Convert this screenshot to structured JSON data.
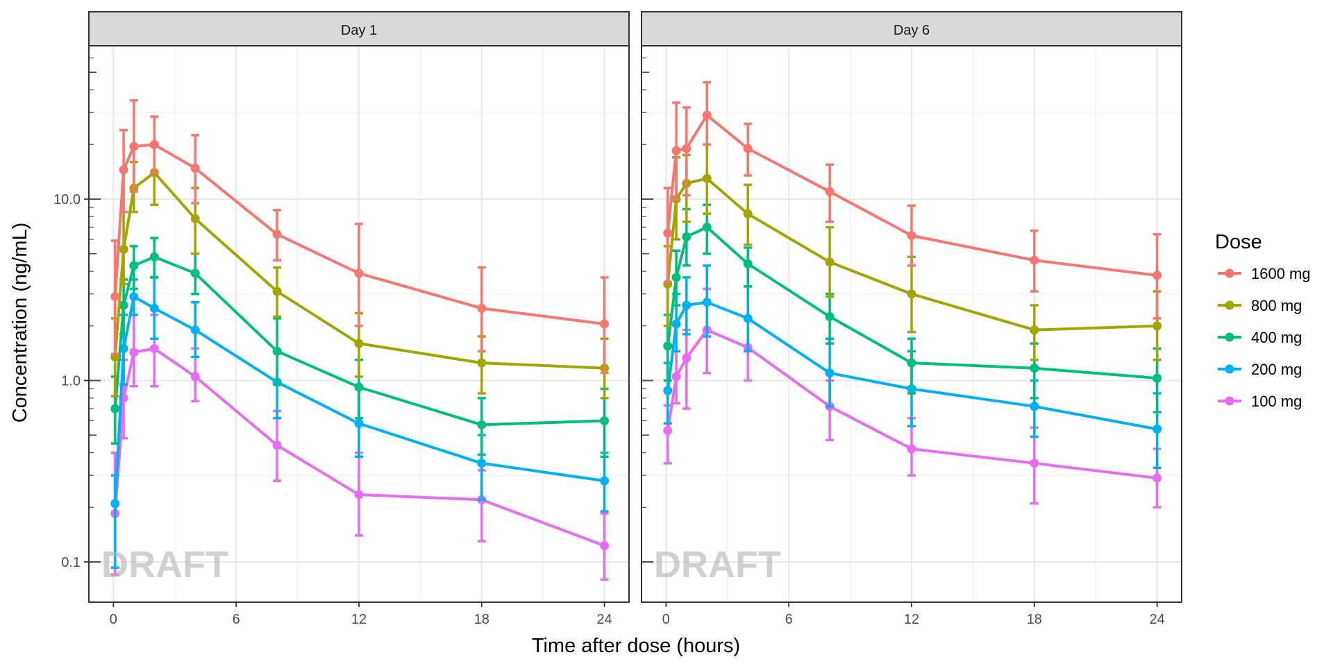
{
  "chart_data": {
    "type": "line",
    "ylabel": "Concentration (ng/mL)",
    "xlabel": "Time after dose (hours)",
    "y_scale": "log10",
    "ylim": [
      0.06,
      70
    ],
    "xlim": [
      -1.2,
      25.2
    ],
    "x_ticks": [
      0,
      6,
      12,
      18,
      24
    ],
    "x_tick_labels": [
      "0",
      "6",
      "12",
      "18",
      "24"
    ],
    "y_ticks": [
      0.1,
      1.0,
      10.0
    ],
    "y_tick_labels": [
      "0.1",
      "1.0",
      "10.0"
    ],
    "grid": true,
    "legend_title": "Dose",
    "legend_position": "right",
    "watermark": "DRAFT",
    "x": [
      0.083,
      0.5,
      1,
      2,
      4,
      8,
      12,
      18,
      24
    ],
    "series_order": [
      "1600 mg",
      "800 mg",
      "400 mg",
      "200 mg",
      "100 mg"
    ],
    "series_colors": {
      "1600 mg": "#F8766D",
      "800 mg": "#A3A500",
      "400 mg": "#00BF7D",
      "200 mg": "#00B0F6",
      "100 mg": "#E76BF3"
    },
    "panels": [
      {
        "title": "Day 1",
        "series": [
          {
            "name": "1600 mg",
            "values": [
              2.9,
              14.5,
              19.5,
              20.0,
              14.8,
              6.4,
              3.9,
              2.5,
              2.05
            ],
            "upper": [
              5.9,
              24.0,
              35.0,
              28.5,
              22.5,
              8.7,
              7.3,
              4.2,
              3.7
            ],
            "lower": [
              1.4,
              8.5,
              11.0,
              14.0,
              9.5,
              4.6,
              2.0,
              1.45,
              1.1
            ]
          },
          {
            "name": "800 mg",
            "values": [
              1.35,
              5.3,
              11.5,
              14.0,
              7.8,
              3.1,
              1.6,
              1.25,
              1.17
            ],
            "upper": [
              2.2,
              8.5,
              16.0,
              19.5,
              11.5,
              4.2,
              2.35,
              1.75,
              1.7
            ],
            "lower": [
              0.82,
              3.4,
              8.5,
              9.3,
              5.0,
              2.25,
              1.05,
              0.85,
              0.8
            ]
          },
          {
            "name": "400 mg",
            "values": [
              0.7,
              2.6,
              4.3,
              4.8,
              3.9,
              1.45,
              0.92,
              0.57,
              0.6
            ],
            "upper": [
              1.05,
              3.6,
              5.5,
              6.1,
              5.0,
              2.2,
              1.3,
              0.8,
              0.9
            ],
            "lower": [
              0.45,
              1.8,
              3.2,
              3.7,
              3.0,
              0.95,
              0.62,
              0.39,
              0.38
            ]
          },
          {
            "name": "200 mg",
            "values": [
              0.21,
              1.5,
              2.9,
              2.5,
              1.9,
              0.98,
              0.58,
              0.35,
              0.28
            ],
            "upper": [
              0.3,
              2.3,
              3.6,
              3.7,
              2.7,
              1.45,
              0.9,
              0.5,
              0.4
            ],
            "lower": [
              0.093,
              0.95,
              2.3,
              1.7,
              1.35,
              0.62,
              0.38,
              0.22,
              0.19
            ]
          },
          {
            "name": "100 mg",
            "values": [
              0.185,
              0.8,
              1.43,
              1.5,
              1.05,
              0.44,
              0.235,
              0.22,
              0.123
            ],
            "upper": [
              0.4,
              1.3,
              2.3,
              2.3,
              1.5,
              0.68,
              0.4,
              0.32,
              0.185
            ],
            "lower": [
              0.085,
              0.48,
              0.93,
              0.93,
              0.77,
              0.28,
              0.14,
              0.13,
              0.08
            ]
          }
        ]
      },
      {
        "title": "Day 6",
        "series": [
          {
            "name": "1600 mg",
            "values": [
              6.5,
              18.5,
              19.0,
              29.0,
              19.0,
              11.0,
              6.3,
              4.6,
              3.8
            ],
            "upper": [
              11.5,
              34.0,
              32.0,
              44.0,
              26.0,
              15.5,
              9.2,
              6.7,
              6.4
            ],
            "lower": [
              3.5,
              10.0,
              10.5,
              20.0,
              13.5,
              7.5,
              4.3,
              3.1,
              2.2
            ]
          },
          {
            "name": "800 mg",
            "values": [
              3.4,
              10.0,
              12.2,
              13.0,
              8.3,
              4.5,
              3.0,
              1.9,
              2.0
            ],
            "upper": [
              5.5,
              17.0,
              17.5,
              20.0,
              12.0,
              7.0,
              4.8,
              2.6,
              3.1
            ],
            "lower": [
              2.0,
              6.0,
              7.5,
              8.3,
              5.6,
              2.9,
              1.85,
              1.3,
              1.3
            ]
          },
          {
            "name": "400 mg",
            "values": [
              1.55,
              3.7,
              6.2,
              7.0,
              4.4,
              2.25,
              1.25,
              1.17,
              1.03
            ],
            "upper": [
              2.3,
              5.2,
              8.8,
              9.3,
              5.4,
              3.0,
              1.7,
              1.6,
              1.5
            ],
            "lower": [
              1.0,
              2.6,
              4.3,
              5.0,
              3.3,
              1.6,
              0.85,
              0.8,
              0.67
            ]
          },
          {
            "name": "200 mg",
            "values": [
              0.88,
              2.05,
              2.6,
              2.7,
              2.2,
              1.1,
              0.9,
              0.72,
              0.54
            ],
            "upper": [
              1.25,
              3.0,
              3.7,
              4.3,
              3.3,
              1.7,
              1.45,
              1.0,
              0.85
            ],
            "lower": [
              0.58,
              1.45,
              1.8,
              1.75,
              1.45,
              0.72,
              0.56,
              0.49,
              0.33
            ]
          },
          {
            "name": "100 mg",
            "values": [
              0.53,
              1.05,
              1.33,
              1.9,
              1.52,
              0.72,
              0.42,
              0.35,
              0.29
            ],
            "upper": [
              0.73,
              1.45,
              1.9,
              3.2,
              2.2,
              1.0,
              0.62,
              0.55,
              0.42
            ],
            "lower": [
              0.35,
              0.75,
              0.7,
              1.1,
              1.0,
              0.47,
              0.3,
              0.21,
              0.2
            ]
          }
        ]
      }
    ]
  }
}
